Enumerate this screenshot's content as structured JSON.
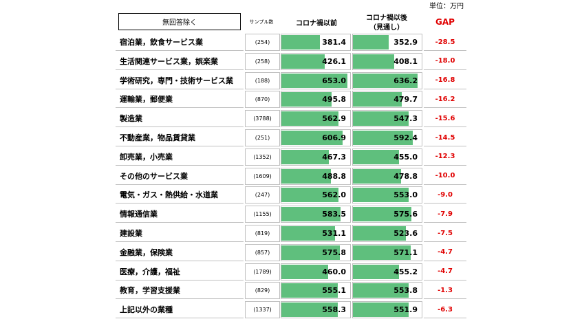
{
  "unit_label": "単位：万円",
  "filter_label": "無回答除く",
  "headers": {
    "sample": "サンプル数",
    "before": "コロナ禍以前",
    "after_line1": "コロナ禍以後",
    "after_line2": "（見通し）",
    "gap": "GAP"
  },
  "colors": {
    "bar": "#5fbf7d",
    "gap_text": "#e00000"
  },
  "chart_data": {
    "type": "bar",
    "value_unit": "万円",
    "xlim": [
      0,
      653.0
    ],
    "categories": [
      "宿泊業，飲食サービス業",
      "生活関連サービス業，娯楽業",
      "学術研究，専門・技術サービス業",
      "運輸業，郵便業",
      "製造業",
      "不動産業，物品賃貸業",
      "卸売業，小売業",
      "その他のサービス業",
      "電気・ガス・熱供給・水道業",
      "情報通信業",
      "建設業",
      "金融業，保険業",
      "医療，介護，福祉",
      "教育，学習支援業",
      "上記以外の業種"
    ],
    "sample_sizes": [
      "(254)",
      "(258)",
      "(188)",
      "(870)",
      "(3788)",
      "(251)",
      "(1352)",
      "(1609)",
      "(247)",
      "(1155)",
      "(819)",
      "(857)",
      "(1789)",
      "(829)",
      "(1337)"
    ],
    "series": [
      {
        "name": "コロナ禍以前",
        "values": [
          "381.4",
          "426.1",
          "653.0",
          "495.8",
          "562.9",
          "606.9",
          "467.3",
          "488.8",
          "562.0",
          "583.5",
          "531.1",
          "575.8",
          "460.0",
          "555.1",
          "558.3"
        ]
      },
      {
        "name": "コロナ禍以後（見通し）",
        "values": [
          "352.9",
          "408.1",
          "636.2",
          "479.7",
          "547.3",
          "592.4",
          "455.0",
          "478.8",
          "553.0",
          "575.6",
          "523.6",
          "571.1",
          "455.2",
          "553.8",
          "551.9"
        ]
      }
    ],
    "gap": [
      "-28.5",
      "-18.0",
      "-16.8",
      "-16.2",
      "-15.6",
      "-14.5",
      "-12.3",
      "-10.0",
      "-9.0",
      "-7.9",
      "-7.5",
      "-4.7",
      "-4.7",
      "-1.3",
      "-6.3"
    ]
  }
}
